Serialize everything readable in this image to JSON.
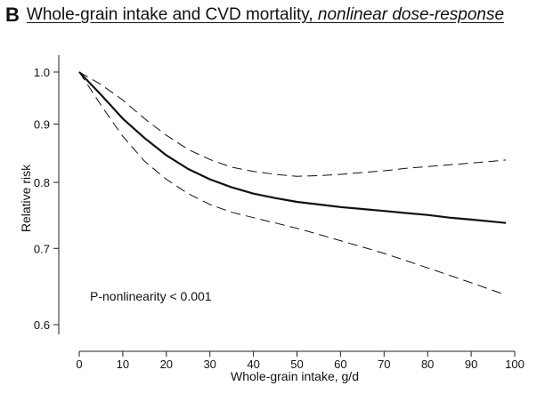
{
  "panel_label": "B",
  "title": {
    "main": "Whole-grain intake and CVD mortality, ",
    "italic": "nonlinear dose-response"
  },
  "colors": {
    "line": "#111111",
    "axis": "#222222"
  },
  "chart_data": {
    "type": "line",
    "title": "Whole-grain intake and CVD mortality, nonlinear dose-response",
    "xlabel": "Whole-grain intake, g/d",
    "ylabel": "Relative risk",
    "xlim": [
      0,
      100
    ],
    "ylim": [
      0.6,
      1.0
    ],
    "y_scale": "log",
    "x_ticks": [
      0,
      10,
      20,
      30,
      40,
      50,
      60,
      70,
      80,
      90,
      100
    ],
    "y_ticks": [
      0.6,
      0.7,
      0.8,
      0.9,
      1.0
    ],
    "x_tick_labels": [
      "0",
      "10",
      "20",
      "30",
      "40",
      "50",
      "60",
      "70",
      "80",
      "90",
      "100"
    ],
    "y_tick_labels": [
      "0.6",
      "0.7",
      "0.8",
      "0.9",
      "1.0"
    ],
    "grid": false,
    "annotation": "P-nonlinearity < 0.001",
    "series": [
      {
        "role": "estimate",
        "style": "solid",
        "points": [
          [
            0,
            1.0
          ],
          [
            5,
            0.955
          ],
          [
            10,
            0.91
          ],
          [
            15,
            0.875
          ],
          [
            20,
            0.845
          ],
          [
            25,
            0.822
          ],
          [
            30,
            0.805
          ],
          [
            35,
            0.792
          ],
          [
            40,
            0.782
          ],
          [
            45,
            0.775
          ],
          [
            50,
            0.769
          ],
          [
            55,
            0.765
          ],
          [
            60,
            0.761
          ],
          [
            65,
            0.758
          ],
          [
            70,
            0.755
          ],
          [
            75,
            0.752
          ],
          [
            80,
            0.749
          ],
          [
            85,
            0.745
          ],
          [
            90,
            0.742
          ],
          [
            95,
            0.739
          ],
          [
            98,
            0.737
          ]
        ]
      },
      {
        "role": "upper",
        "style": "dashed",
        "points": [
          [
            0,
            1.0
          ],
          [
            5,
            0.975
          ],
          [
            10,
            0.945
          ],
          [
            15,
            0.91
          ],
          [
            20,
            0.88
          ],
          [
            25,
            0.855
          ],
          [
            30,
            0.838
          ],
          [
            35,
            0.825
          ],
          [
            40,
            0.818
          ],
          [
            45,
            0.813
          ],
          [
            50,
            0.81
          ],
          [
            55,
            0.811
          ],
          [
            60,
            0.813
          ],
          [
            65,
            0.816
          ],
          [
            70,
            0.819
          ],
          [
            75,
            0.823
          ],
          [
            80,
            0.826
          ],
          [
            85,
            0.829
          ],
          [
            90,
            0.832
          ],
          [
            95,
            0.835
          ],
          [
            98,
            0.837
          ]
        ]
      },
      {
        "role": "lower",
        "style": "dashed",
        "points": [
          [
            0,
            1.0
          ],
          [
            5,
            0.935
          ],
          [
            10,
            0.878
          ],
          [
            15,
            0.835
          ],
          [
            20,
            0.805
          ],
          [
            25,
            0.782
          ],
          [
            30,
            0.765
          ],
          [
            35,
            0.753
          ],
          [
            40,
            0.745
          ],
          [
            45,
            0.737
          ],
          [
            50,
            0.729
          ],
          [
            55,
            0.72
          ],
          [
            60,
            0.711
          ],
          [
            65,
            0.702
          ],
          [
            70,
            0.693
          ],
          [
            75,
            0.683
          ],
          [
            80,
            0.673
          ],
          [
            85,
            0.663
          ],
          [
            90,
            0.653
          ],
          [
            95,
            0.643
          ],
          [
            98,
            0.637
          ]
        ]
      }
    ]
  }
}
